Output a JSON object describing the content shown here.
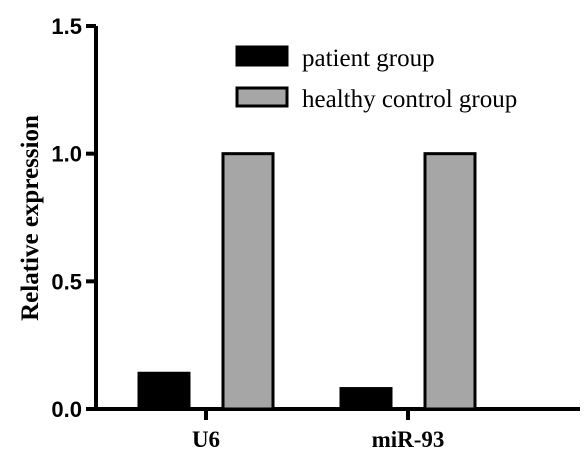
{
  "chart_data": {
    "type": "bar",
    "title": "",
    "xlabel": "",
    "ylabel": "Relative expression",
    "categories": [
      "U6",
      "miR-93"
    ],
    "series": [
      {
        "name": "patient group",
        "values": [
          0.14,
          0.08
        ],
        "color": "#000000"
      },
      {
        "name": "healthy control group",
        "values": [
          1.0,
          1.0
        ],
        "color": "#a6a6a6"
      }
    ],
    "ylim": [
      0,
      1.5
    ],
    "yticks": [
      0.0,
      0.5,
      1.0,
      1.5
    ],
    "ytick_labels": [
      "0.0",
      "0.5",
      "1.0",
      "1.5"
    ],
    "grid": false,
    "legend_position": "top-right"
  }
}
